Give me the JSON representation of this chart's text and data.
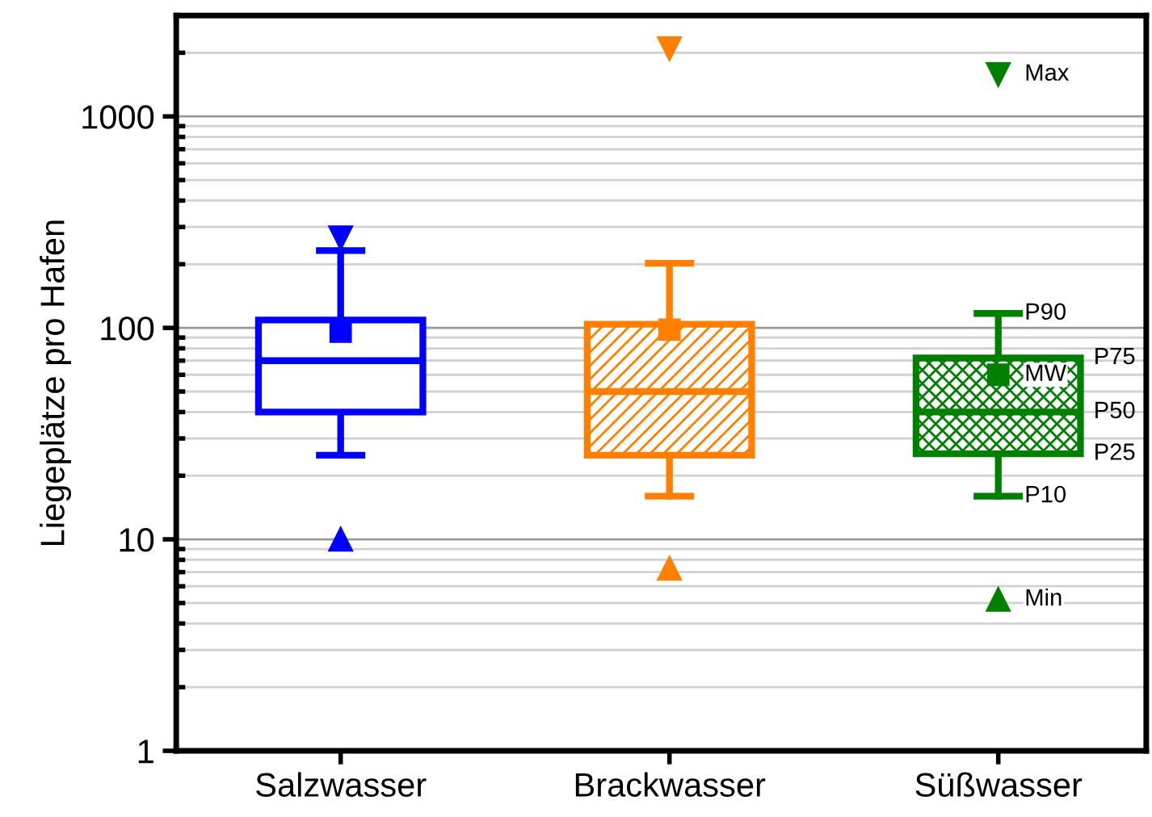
{
  "chart_data": {
    "type": "box",
    "ylabel": "Liegeplätze pro Hafen",
    "categories": [
      "Salzwasser",
      "Brackwasser",
      "Süßwasser"
    ],
    "colors": [
      "#0000ff",
      "#ff7f00",
      "#007f00"
    ],
    "boxes": [
      {
        "low": 25,
        "q1": 40,
        "median": 70,
        "q3": 109,
        "high": 232,
        "mean": 96,
        "outliers": [
          10,
          267
        ]
      },
      {
        "low": 16,
        "q1": 25,
        "median": 50,
        "q3": 104,
        "high": 202,
        "mean": 98,
        "outliers": [
          7.3,
          2090
        ]
      },
      {
        "low": 16,
        "q1": 25.4,
        "median": 40,
        "q3": 72,
        "high": 117,
        "mean": 60,
        "outliers": [
          5.2,
          1580
        ]
      }
    ],
    "log": "y",
    "ylim": [
      1,
      3000
    ],
    "yticks": [
      1,
      10,
      100,
      1000
    ],
    "grid": "y",
    "annotations": [
      "Max",
      "P90",
      "P75",
      "MW",
      "P50",
      "P25",
      "P10",
      "Min"
    ]
  }
}
